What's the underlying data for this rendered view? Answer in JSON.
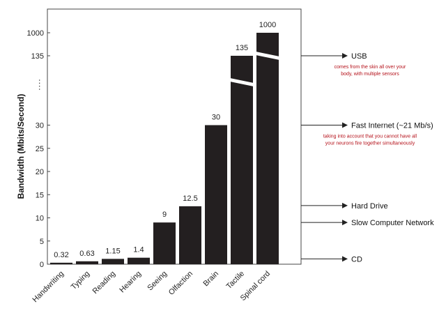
{
  "chart_data": {
    "type": "bar",
    "ylabel": "Bandwidth (Mbits/Second)",
    "y_axis": {
      "scale": "broken",
      "linear_segment_ylim": [
        0,
        30
      ],
      "tick_labels": [
        "0",
        "5",
        "10",
        "15",
        "20",
        "25",
        "30",
        "135",
        "1000"
      ],
      "break_marker": "...."
    },
    "categories": [
      "Handwriting",
      "Typing",
      "Reading",
      "Hearing",
      "Seeing",
      "Olfaction",
      "Brain",
      "Tactile",
      "Spinal cord"
    ],
    "values": [
      0.32,
      0.63,
      1.15,
      1.4,
      9,
      12.5,
      30,
      135,
      1000
    ],
    "value_labels": [
      "0.32",
      "0.63",
      "1.15",
      "1.4",
      "9",
      "12.5",
      "30",
      "135",
      "1000"
    ],
    "broken_bars": [
      "Tactile",
      "Spinal cord"
    ],
    "bar_color": "#231f20",
    "grid": false,
    "legend": "none",
    "reference_markers": [
      {
        "label": "USB",
        "note": [
          "comes from the skin all over your",
          "body, with multiple sensors"
        ]
      },
      {
        "label": "Fast Internet (~21 Mb/s)",
        "note": [
          "taking into account that you cannot have all",
          "your neurons fire together simultaneously"
        ]
      },
      {
        "label": "Hard Drive",
        "note": []
      },
      {
        "label": "Slow Computer Network",
        "note": []
      },
      {
        "label": "CD",
        "note": []
      }
    ],
    "note_color": "#b5121b"
  }
}
